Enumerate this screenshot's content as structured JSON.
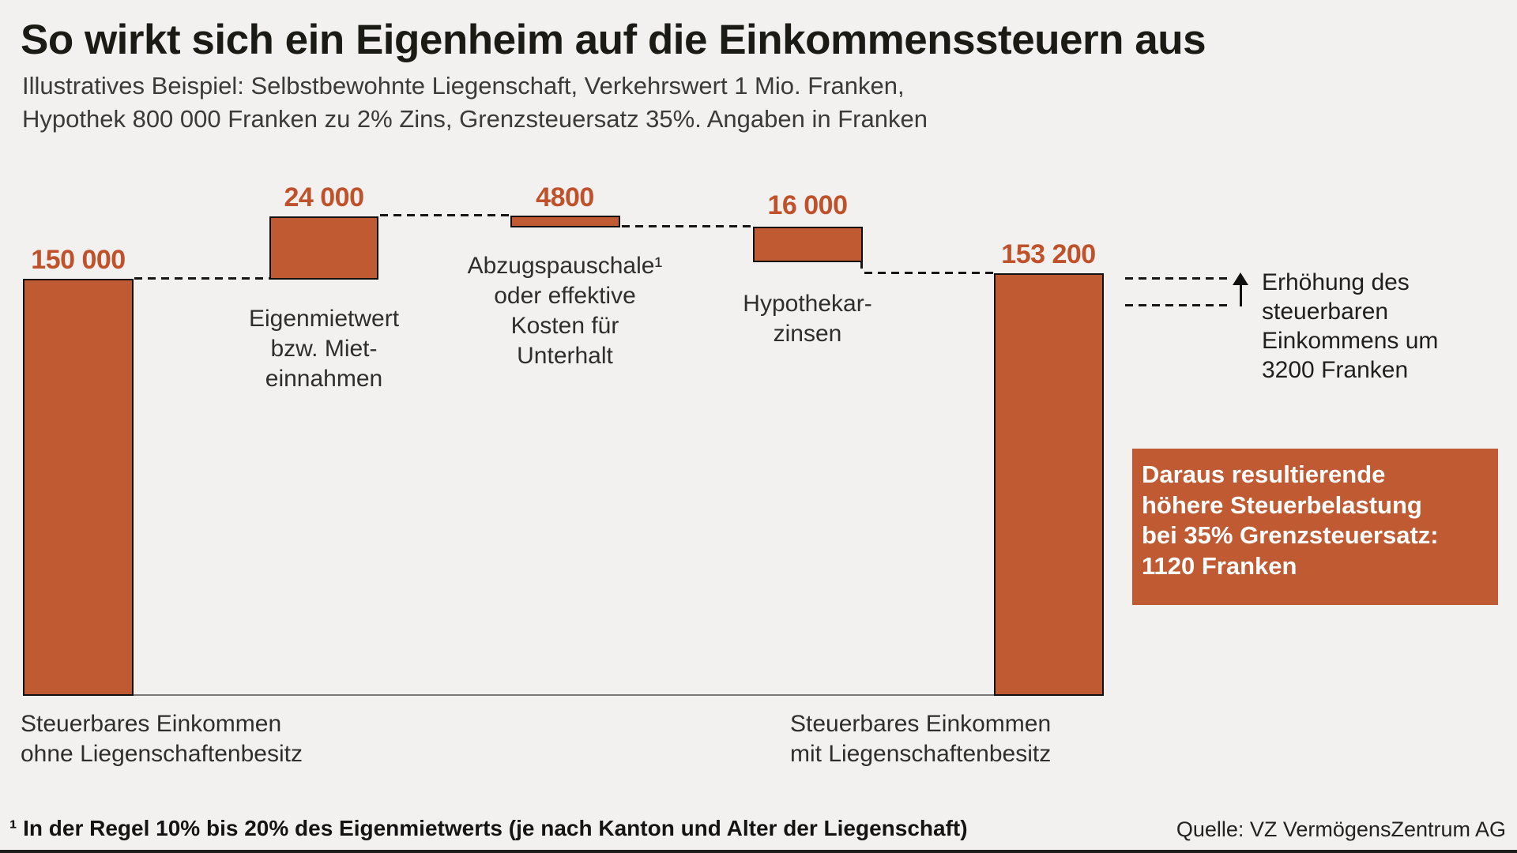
{
  "window": {
    "background_color": "#f2f1ef",
    "accent_color": "#bf5a33",
    "value_label_color": "#bf512b"
  },
  "header": {
    "title": "So wirkt sich ein Eigenheim auf die Einkommenssteuern aus",
    "subtitle_line1": "Illustratives Beispiel: Selbstbewohnte Liegenschaft, Verkehrswert 1 Mio. Franken,",
    "subtitle_line2": "Hypothek 800 000 Franken zu 2% Zins, Grenzsteuersatz 35%. Angaben in Franken"
  },
  "chart_data": {
    "type": "bar",
    "subtype": "waterfall",
    "title": "So wirkt sich ein Eigenheim auf die Einkommenssteuern aus",
    "unit": "Franken",
    "grid": false,
    "axes_visible": false,
    "legend": "none",
    "ylim": [
      0,
      174000
    ],
    "bars": [
      {
        "label": "150 000",
        "value": 150000,
        "start": 0,
        "end": 150000,
        "role": "total",
        "caption": "Steuerbares Einkommen\nohne Liegenschaftenbesitz"
      },
      {
        "label": "24 000",
        "value": 24000,
        "start": 150000,
        "end": 174000,
        "role": "increase",
        "caption": "Eigenmietwert\nbzw. Miet-\neinnahmen"
      },
      {
        "label": "4800",
        "value": -4800,
        "start": 174000,
        "end": 169200,
        "role": "decrease",
        "caption": "Abzugspauschale¹\noder effektive\nKosten für\nUnterhalt"
      },
      {
        "label": "16 000",
        "value": -16000,
        "start": 169200,
        "end": 153200,
        "role": "decrease",
        "caption": "Hypothekar-\nzinsen"
      },
      {
        "label": "153 200",
        "value": 153200,
        "start": 0,
        "end": 153200,
        "role": "total",
        "caption": "Steuerbares Einkommen\nmit Liegenschaftenbesitz"
      }
    ],
    "bar_fill": "#bf5a33",
    "bar_border": "#101010",
    "connector_style": "dashed",
    "annotation": {
      "text": "Erhöhung des\nsteuerbaren\nEinkommens um\n3200 Franken",
      "delta_value": 3200,
      "arrow_direction": "up"
    }
  },
  "callout": {
    "text": "Daraus resultierende\nhöhere Steuerbelastung\nbei 35% Grenzsteuersatz:\n1120 Franken",
    "background": "#bf5a33",
    "text_color": "#ffffff"
  },
  "footer": {
    "footnote": "¹ In der Regel 10% bis 20% des Eigenmietwerts (je nach Kanton und Alter der Liegenschaft)",
    "source": "Quelle: VZ VermögensZentrum AG"
  }
}
